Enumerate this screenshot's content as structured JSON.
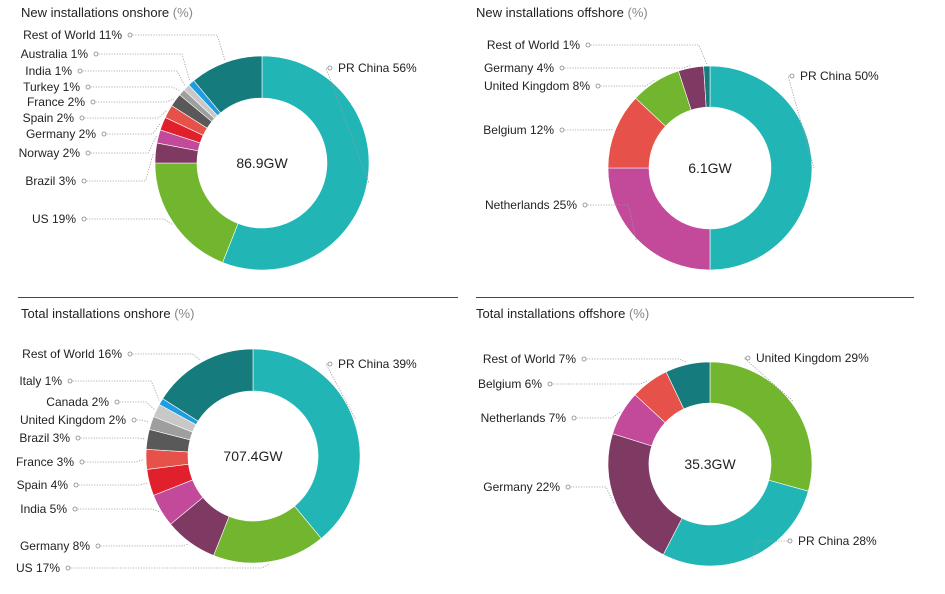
{
  "chart_data": [
    {
      "type": "pie",
      "title": "New installations onshore",
      "unit": "(%)",
      "center_label": "86.9GW",
      "slices": [
        {
          "name": "PR China",
          "label": "PR China 56%",
          "value": 56,
          "color": "#21b6b5"
        },
        {
          "name": "US",
          "label": "US 19%",
          "value": 19,
          "color": "#71b62e"
        },
        {
          "name": "Brazil",
          "label": "Brazil 3%",
          "value": 3,
          "color": "#7e3a63"
        },
        {
          "name": "Norway",
          "label": "Norway 2%",
          "value": 2,
          "color": "#c3499a"
        },
        {
          "name": "Germany",
          "label": "Germany 2%",
          "value": 2,
          "color": "#e1202d"
        },
        {
          "name": "Spain",
          "label": "Spain 2%",
          "value": 2,
          "color": "#e6524a"
        },
        {
          "name": "France",
          "label": "France 2%",
          "value": 2,
          "color": "#595959"
        },
        {
          "name": "Turkey",
          "label": "Turkey 1%",
          "value": 1,
          "color": "#9e9e9e"
        },
        {
          "name": "India",
          "label": "India 1%",
          "value": 1,
          "color": "#c8c8c8"
        },
        {
          "name": "Australia",
          "label": "Australia 1%",
          "value": 1,
          "color": "#1f9de0"
        },
        {
          "name": "Rest of World",
          "label": "Rest of World 11%",
          "value": 11,
          "color": "#167b7d"
        }
      ]
    },
    {
      "type": "pie",
      "title": "New installations offshore",
      "unit": "(%)",
      "center_label": "6.1GW",
      "slices": [
        {
          "name": "PR China",
          "label": "PR China 50%",
          "value": 50,
          "color": "#21b6b5"
        },
        {
          "name": "Netherlands",
          "label": "Netherlands 25%",
          "value": 25,
          "color": "#c3499a"
        },
        {
          "name": "Belgium",
          "label": "Belgium 12%",
          "value": 12,
          "color": "#e6524a"
        },
        {
          "name": "United Kingdom",
          "label": "United Kingdom 8%",
          "value": 8,
          "color": "#71b62e"
        },
        {
          "name": "Germany",
          "label": "Germany 4%",
          "value": 4,
          "color": "#7e3a63"
        },
        {
          "name": "Rest of World",
          "label": "Rest of World 1%",
          "value": 1,
          "color": "#167b7d"
        }
      ]
    },
    {
      "type": "pie",
      "title": "Total installations onshore",
      "unit": "(%)",
      "center_label": "707.4GW",
      "slices": [
        {
          "name": "PR China",
          "label": "PR China 39%",
          "value": 39,
          "color": "#21b6b5"
        },
        {
          "name": "US",
          "label": "US 17%",
          "value": 17,
          "color": "#71b62e"
        },
        {
          "name": "Germany",
          "label": "Germany 8%",
          "value": 8,
          "color": "#7e3a63"
        },
        {
          "name": "India",
          "label": "India 5%",
          "value": 5,
          "color": "#c3499a"
        },
        {
          "name": "Spain",
          "label": "Spain 4%",
          "value": 4,
          "color": "#e1202d"
        },
        {
          "name": "France",
          "label": "France 3%",
          "value": 3,
          "color": "#e6524a"
        },
        {
          "name": "Brazil",
          "label": "Brazil 3%",
          "value": 3,
          "color": "#595959"
        },
        {
          "name": "United Kingdom",
          "label": "United Kingdom 2%",
          "value": 2,
          "color": "#9e9e9e"
        },
        {
          "name": "Canada",
          "label": "Canada 2%",
          "value": 2,
          "color": "#c8c8c8"
        },
        {
          "name": "Italy",
          "label": "Italy 1%",
          "value": 1,
          "color": "#1f9de0"
        },
        {
          "name": "Rest of World",
          "label": "Rest of World 16%",
          "value": 16,
          "color": "#167b7d"
        }
      ]
    },
    {
      "type": "pie",
      "title": "Total installations offshore",
      "unit": "(%)",
      "center_label": "35.3GW",
      "slices": [
        {
          "name": "United Kingdom",
          "label": "United Kingdom 29%",
          "value": 29,
          "color": "#71b62e"
        },
        {
          "name": "PR China",
          "label": "PR China 28%",
          "value": 28,
          "color": "#21b6b5"
        },
        {
          "name": "Germany",
          "label": "Germany 22%",
          "value": 22,
          "color": "#7e3a63"
        },
        {
          "name": "Netherlands",
          "label": "Netherlands 7%",
          "value": 7,
          "color": "#c3499a"
        },
        {
          "name": "Belgium",
          "label": "Belgium 6%",
          "value": 6,
          "color": "#e6524a"
        },
        {
          "name": "Rest of World",
          "label": "Rest of World 7%",
          "value": 7,
          "color": "#167b7d"
        }
      ]
    }
  ]
}
